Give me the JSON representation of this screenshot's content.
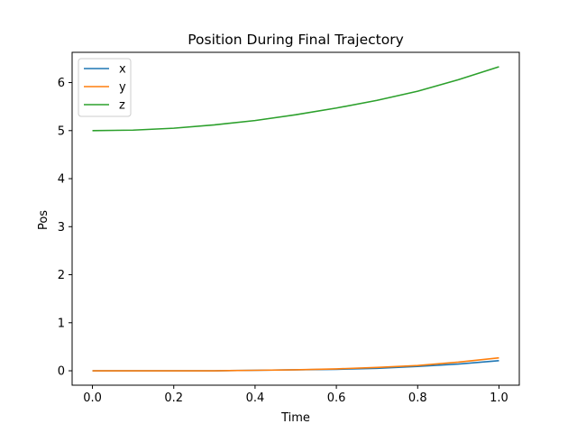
{
  "chart_data": {
    "type": "line",
    "title": "Position During Final Trajectory",
    "xlabel": "Time",
    "ylabel": "Pos",
    "xlim": [
      -0.05,
      1.05
    ],
    "ylim": [
      -0.3,
      6.63
    ],
    "xticks": [
      0.0,
      0.2,
      0.4,
      0.6,
      0.8,
      1.0
    ],
    "xtick_labels": [
      "0.0",
      "0.2",
      "0.4",
      "0.6",
      "0.8",
      "1.0"
    ],
    "yticks": [
      0,
      1,
      2,
      3,
      4,
      5,
      6
    ],
    "ytick_labels": [
      "0",
      "1",
      "2",
      "3",
      "4",
      "5",
      "6"
    ],
    "grid": false,
    "legend_position": "top-left",
    "x": [
      0.0,
      0.1,
      0.2,
      0.3,
      0.4,
      0.5,
      0.6,
      0.7,
      0.8,
      0.9,
      1.0
    ],
    "series": [
      {
        "name": "x",
        "color": "#1f77b4",
        "values": [
          0.0,
          0.0,
          0.0,
          0.0,
          0.01,
          0.02,
          0.03,
          0.05,
          0.09,
          0.14,
          0.21
        ]
      },
      {
        "name": "y",
        "color": "#ff7f0e",
        "values": [
          0.0,
          0.0,
          0.0,
          0.0,
          0.01,
          0.02,
          0.04,
          0.07,
          0.11,
          0.18,
          0.27
        ]
      },
      {
        "name": "z",
        "color": "#2ca02c",
        "values": [
          5.0,
          5.01,
          5.05,
          5.12,
          5.21,
          5.33,
          5.47,
          5.63,
          5.82,
          6.06,
          6.33
        ]
      }
    ]
  }
}
